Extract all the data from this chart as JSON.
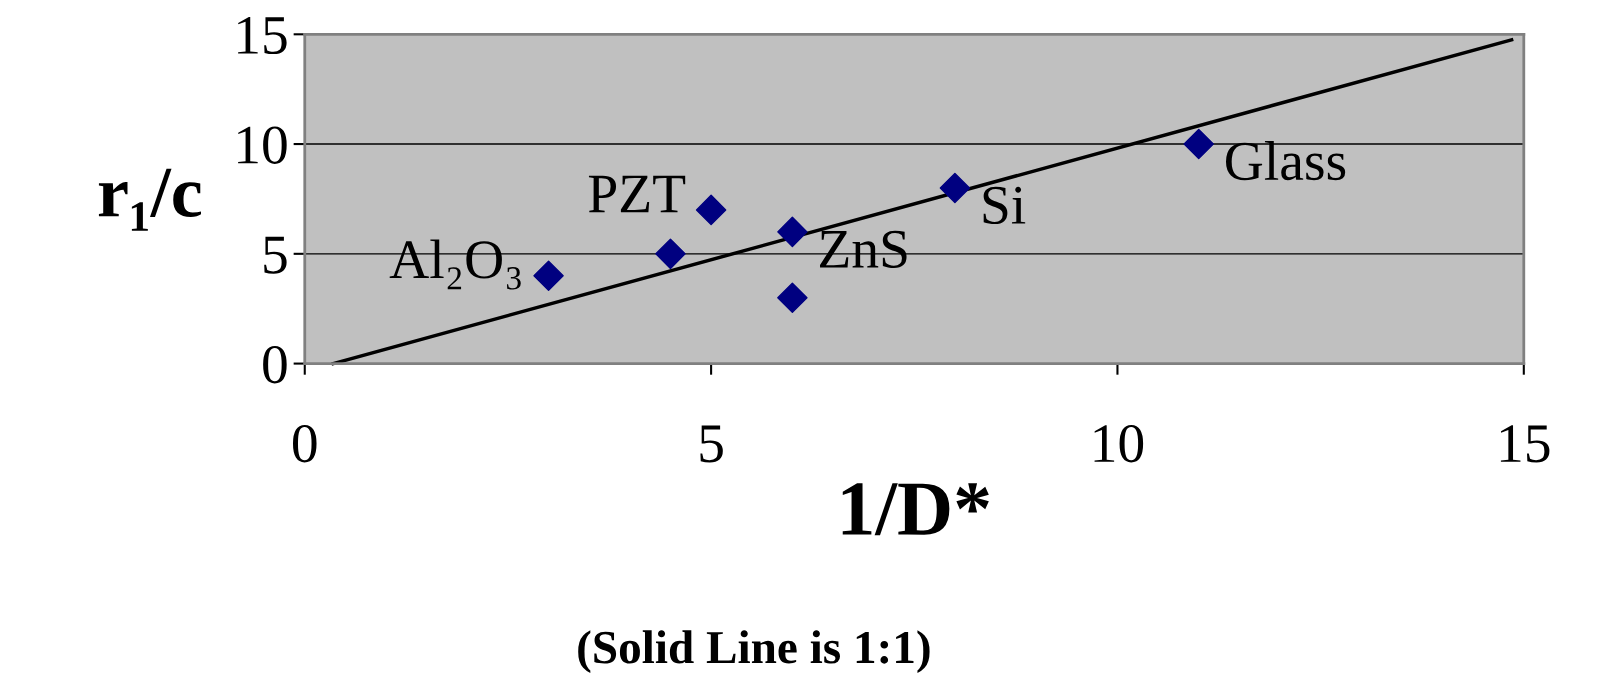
{
  "chart_data": {
    "type": "scatter",
    "xlabel": "1/D*",
    "ylabel": "r₁/c",
    "x": [
      3,
      4.5,
      5,
      6,
      6,
      8,
      11
    ],
    "series": [
      {
        "type": "scatter",
        "color": "#000080",
        "marker": "diamond",
        "values": [
          4,
          5,
          7,
          6,
          3,
          8,
          10
        ]
      },
      {
        "type": "line",
        "color": "#000000",
        "marker": "none",
        "line_style": "solid",
        "x": [
          0.35,
          14.85
        ],
        "values": [
          0,
          14.75
        ]
      }
    ],
    "xlim": [
      0,
      15
    ],
    "ylim": [
      0,
      15
    ],
    "xticks": [
      0,
      5,
      10,
      15
    ],
    "yticks": [
      0,
      5,
      10,
      15
    ],
    "grid": "y",
    "annotations": [
      {
        "text": "Al₂O₃",
        "x": 3,
        "y": 4
      },
      {
        "text": "PZT",
        "x": 5,
        "y": 7
      },
      {
        "text": "ZnS",
        "x": 6,
        "y": 6
      },
      {
        "text": "Si",
        "x": 8,
        "y": 8
      },
      {
        "text": "Glass",
        "x": 11,
        "y": 10
      },
      "(Solid Line is 1:1)"
    ]
  }
}
